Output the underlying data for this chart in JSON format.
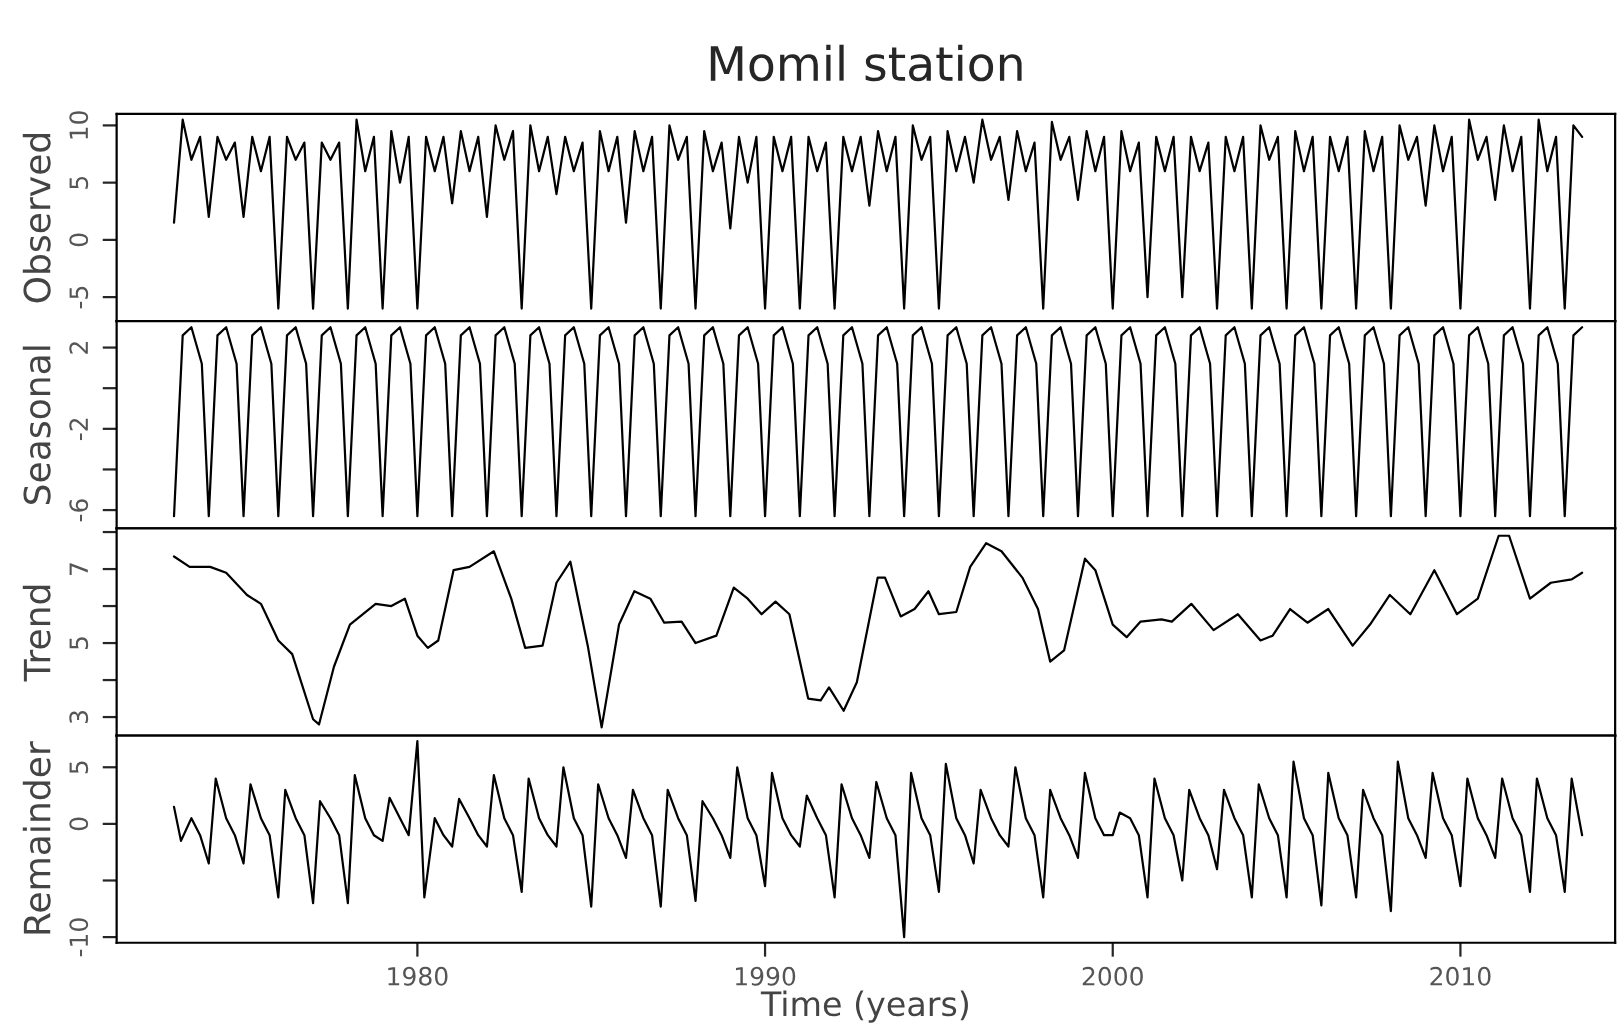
{
  "chart_data": [
    {
      "type": "line",
      "title": "Momil station",
      "ylabel": "Observed",
      "xlim": [
        1971.35,
        2014.45
      ],
      "ylim": [
        -7.1,
        11
      ],
      "yticks": [
        -5,
        0,
        5,
        10
      ],
      "tick_labels": "y",
      "series": [
        {
          "color": "#000000",
          "x": [
            1973,
            1973.25,
            1973.5,
            1973.75,
            1974,
            1974.25,
            1974.5,
            1974.75,
            1975,
            1975.25,
            1975.5,
            1975.75,
            1976,
            1976.25,
            1976.5,
            1976.75,
            1977,
            1977.25,
            1977.5,
            1977.75,
            1978,
            1978.25,
            1978.5,
            1978.75,
            1979,
            1979.25,
            1979.5,
            1979.75,
            1980,
            1980.25,
            1980.5,
            1980.75,
            1981,
            1981.25,
            1981.5,
            1981.75,
            1982,
            1982.25,
            1982.5,
            1982.75,
            1983,
            1983.25,
            1983.5,
            1983.75,
            1984,
            1984.25,
            1984.5,
            1984.75,
            1985,
            1985.25,
            1985.5,
            1985.75,
            1986,
            1986.25,
            1986.5,
            1986.75,
            1987,
            1987.25,
            1987.5,
            1987.75,
            1988,
            1988.25,
            1988.5,
            1988.75,
            1989,
            1989.25,
            1989.5,
            1989.75,
            1990,
            1990.25,
            1990.5,
            1990.75,
            1991,
            1991.25,
            1991.5,
            1991.75,
            1992,
            1992.25,
            1992.5,
            1992.75,
            1993,
            1993.25,
            1993.5,
            1993.75,
            1994,
            1994.25,
            1994.5,
            1994.75,
            1995,
            1995.25,
            1995.5,
            1995.75,
            1996,
            1996.25,
            1996.5,
            1996.75,
            1997,
            1997.25,
            1997.5,
            1997.75,
            1998,
            1998.25,
            1998.5,
            1998.75,
            1999,
            1999.25,
            1999.5,
            1999.75,
            2000,
            2000.25,
            2000.5,
            2000.75,
            2001,
            2001.25,
            2001.5,
            2001.75,
            2002,
            2002.25,
            2002.5,
            2002.75,
            2003,
            2003.25,
            2003.5,
            2003.75,
            2004,
            2004.25,
            2004.5,
            2004.75,
            2005,
            2005.25,
            2005.5,
            2005.75,
            2006,
            2006.25,
            2006.5,
            2006.75,
            2007,
            2007.25,
            2007.5,
            2007.75,
            2008,
            2008.25,
            2008.5,
            2008.75,
            2009,
            2009.25,
            2009.5,
            2009.75,
            2010,
            2010.25,
            2010.5,
            2010.75,
            2011,
            2011.25,
            2011.5,
            2011.75,
            2012,
            2012.25,
            2012.5,
            2012.75,
            2013,
            2013.25,
            2013.5
          ],
          "values": [
            1.5,
            10.5,
            7,
            9,
            2,
            9,
            7,
            8.5,
            2,
            9,
            6,
            9,
            -6,
            9,
            7,
            8.5,
            -6,
            8.5,
            7,
            8.5,
            -6,
            10.5,
            6,
            9,
            -6,
            9.5,
            5,
            9,
            -6,
            9,
            6,
            9,
            3.2,
            9.5,
            6,
            9,
            2,
            10,
            7,
            9.5,
            -6,
            10,
            6,
            9,
            4,
            9,
            6,
            8.5,
            -6,
            9.5,
            6,
            9,
            1.5,
            9.5,
            6,
            9,
            -6,
            10,
            7,
            9,
            -6,
            9.5,
            6,
            8.5,
            1,
            9,
            5,
            9,
            -6,
            9,
            6,
            9,
            -6,
            9,
            6,
            8.5,
            -6,
            9,
            6,
            9,
            3,
            9.5,
            6,
            9,
            -6,
            10,
            7,
            9,
            -6,
            9.5,
            6,
            9,
            5,
            10.5,
            7,
            9,
            3.5,
            9.5,
            6,
            8.5,
            -6,
            10.3,
            7,
            9,
            3.5,
            9.5,
            6,
            9,
            -6,
            9.5,
            6,
            8.5,
            -5,
            9,
            6,
            9,
            -5,
            9,
            6,
            8.5,
            -6,
            9,
            6,
            9,
            -6,
            10,
            7,
            9,
            -6,
            9.5,
            6,
            9,
            -6,
            9,
            6,
            9,
            -6,
            9.5,
            6,
            9,
            -6,
            10,
            7,
            9,
            3,
            10,
            6,
            9,
            -6,
            10.5,
            7,
            9,
            3.5,
            10,
            6,
            9,
            -6,
            10.5,
            6,
            9,
            -6,
            10,
            9
          ]
        }
      ]
    },
    {
      "type": "line",
      "ylabel": "Seasonal",
      "xlim": [
        1971.35,
        2014.45
      ],
      "ylim": [
        -6.9,
        3.3
      ],
      "yticks": [
        -6,
        {
          "value": -4,
          "label": null
        },
        -2,
        {
          "value": 0,
          "label": null
        },
        2
      ],
      "tick_labels": "y",
      "series": [
        {
          "color": "#000000",
          "x": [
            1973,
            1973.25,
            1973.5,
            1973.8,
            1974,
            1974.25,
            1974.5,
            1974.8,
            1975,
            1975.25,
            1975.5,
            1975.8,
            1976,
            1976.25,
            1976.5,
            1976.8,
            1977,
            1977.25,
            1977.5,
            1977.8,
            1978,
            1978.25,
            1978.5,
            1978.8,
            1979,
            1979.25,
            1979.5,
            1979.8,
            1980,
            1980.25,
            1980.5,
            1980.8,
            1981,
            1981.25,
            1981.5,
            1981.8,
            1982,
            1982.25,
            1982.5,
            1982.8,
            1983,
            1983.25,
            1983.5,
            1983.8,
            1984,
            1984.25,
            1984.5,
            1984.8,
            1985,
            1985.25,
            1985.5,
            1985.8,
            1986,
            1986.25,
            1986.5,
            1986.8,
            1987,
            1987.25,
            1987.5,
            1987.8,
            1988,
            1988.25,
            1988.5,
            1988.8,
            1989,
            1989.25,
            1989.5,
            1989.8,
            1990,
            1990.25,
            1990.5,
            1990.8,
            1991,
            1991.25,
            1991.5,
            1991.8,
            1992,
            1992.25,
            1992.5,
            1992.8,
            1993,
            1993.25,
            1993.5,
            1993.8,
            1994,
            1994.25,
            1994.5,
            1994.8,
            1995,
            1995.25,
            1995.5,
            1995.8,
            1996,
            1996.25,
            1996.5,
            1996.8,
            1997,
            1997.25,
            1997.5,
            1997.8,
            1998,
            1998.25,
            1998.5,
            1998.8,
            1999,
            1999.25,
            1999.5,
            1999.8,
            2000,
            2000.25,
            2000.5,
            2000.8,
            2001,
            2001.25,
            2001.5,
            2001.8,
            2002,
            2002.25,
            2002.5,
            2002.8,
            2003,
            2003.25,
            2003.5,
            2003.8,
            2004,
            2004.25,
            2004.5,
            2004.8,
            2005,
            2005.25,
            2005.5,
            2005.8,
            2006,
            2006.25,
            2006.5,
            2006.8,
            2007,
            2007.25,
            2007.5,
            2007.8,
            2008,
            2008.25,
            2008.5,
            2008.8,
            2009,
            2009.25,
            2009.5,
            2009.8,
            2010,
            2010.25,
            2010.5,
            2010.8,
            2011,
            2011.25,
            2011.5,
            2011.8,
            2012,
            2012.25,
            2012.5,
            2012.8,
            2013,
            2013.25,
            2013.5
          ],
          "values": [
            -6.3,
            2.6,
            3,
            1.2,
            -6.3,
            2.6,
            3,
            1.2,
            -6.3,
            2.6,
            3,
            1.2,
            -6.3,
            2.6,
            3,
            1.2,
            -6.3,
            2.6,
            3,
            1.2,
            -6.3,
            2.6,
            3,
            1.2,
            -6.3,
            2.6,
            3,
            1.2,
            -6.3,
            2.6,
            3,
            1.2,
            -6.3,
            2.6,
            3,
            1.2,
            -6.3,
            2.6,
            3,
            1.2,
            -6.3,
            2.6,
            3,
            1.2,
            -6.3,
            2.6,
            3,
            1.2,
            -6.3,
            2.6,
            3,
            1.2,
            -6.3,
            2.6,
            3,
            1.2,
            -6.3,
            2.6,
            3,
            1.2,
            -6.3,
            2.6,
            3,
            1.2,
            -6.3,
            2.6,
            3,
            1.2,
            -6.3,
            2.6,
            3,
            1.2,
            -6.3,
            2.6,
            3,
            1.2,
            -6.3,
            2.6,
            3,
            1.2,
            -6.3,
            2.6,
            3,
            1.2,
            -6.3,
            2.6,
            3,
            1.2,
            -6.3,
            2.6,
            3,
            1.2,
            -6.3,
            2.6,
            3,
            1.2,
            -6.3,
            2.6,
            3,
            1.2,
            -6.3,
            2.6,
            3,
            1.2,
            -6.3,
            2.6,
            3,
            1.2,
            -6.3,
            2.6,
            3,
            1.2,
            -6.3,
            2.6,
            3,
            1.2,
            -6.3,
            2.6,
            3,
            1.2,
            -6.3,
            2.6,
            3,
            1.2,
            -6.3,
            2.6,
            3,
            1.2,
            -6.3,
            2.6,
            3,
            1.2,
            -6.3,
            2.6,
            3,
            1.2,
            -6.3,
            2.6,
            3,
            1.2,
            -6.3,
            2.6,
            3,
            1.2,
            -6.3,
            2.6,
            3,
            1.2,
            -6.3,
            2.6,
            3,
            1.2,
            -6.3,
            2.6,
            3,
            1.2,
            -6.3,
            2.6,
            3,
            1.2,
            -6.3,
            2.6,
            3
          ]
        }
      ]
    },
    {
      "type": "line",
      "ylabel": "Trend",
      "xlim": [
        1971.35,
        2014.45
      ],
      "ylim": [
        2.5,
        8.1
      ],
      "yticks": [
        3,
        {
          "value": 4,
          "label": null
        },
        5,
        {
          "value": 6,
          "label": null
        },
        7,
        {
          "value": 8,
          "label": null
        }
      ],
      "tick_labels": "y",
      "series": [
        {
          "color": "#000000",
          "x": [
            1973,
            1973.45,
            1974.04,
            1974.5,
            1975.1,
            1975.5,
            1976,
            1976.4,
            1977,
            1977.17,
            1977.6,
            1978.06,
            1978.8,
            1979.25,
            1979.64,
            1980,
            1980.3,
            1980.6,
            1981.04,
            1981.5,
            1982.2,
            1982.7,
            1983.1,
            1983.6,
            1984,
            1984.4,
            1984.9,
            1985.3,
            1985.8,
            1986.24,
            1986.7,
            1987.1,
            1987.6,
            1988,
            1988.6,
            1989.1,
            1989.5,
            1989.9,
            1990.3,
            1990.7,
            1991.24,
            1991.6,
            1991.84,
            1992.26,
            1992.64,
            1993.24,
            1993.45,
            1993.9,
            1994.3,
            1994.7,
            1995,
            1995.5,
            1995.9,
            1996.36,
            1996.8,
            1997.4,
            1997.85,
            1998.2,
            1998.6,
            1999.2,
            1999.5,
            2000,
            2000.4,
            2000.8,
            2001.4,
            2001.7,
            2002.26,
            2002.9,
            2003.6,
            2004.25,
            2004.6,
            2005.1,
            2005.6,
            2006.2,
            2006.9,
            2007.4,
            2007.97,
            2008.56,
            2009.25,
            2009.9,
            2010.5,
            2011.1,
            2011.4,
            2012,
            2012.6,
            2013.2,
            2013.5
          ],
          "values": [
            7.34,
            7.06,
            7.06,
            6.9,
            6.3,
            6.06,
            5.07,
            4.7,
            2.94,
            2.8,
            4.36,
            5.5,
            6.06,
            6,
            6.2,
            5.2,
            4.87,
            5.07,
            6.97,
            7.06,
            7.48,
            6.2,
            4.87,
            4.93,
            6.63,
            7.2,
            4.93,
            2.72,
            5.5,
            6.4,
            6.2,
            5.55,
            5.58,
            5,
            5.2,
            6.5,
            6.2,
            5.78,
            6.12,
            5.78,
            3.5,
            3.45,
            3.8,
            3.17,
            3.94,
            6.77,
            6.77,
            5.72,
            5.92,
            6.4,
            5.78,
            5.84,
            7.06,
            7.7,
            7.48,
            6.77,
            5.92,
            4.5,
            4.8,
            7.28,
            6.97,
            5.5,
            5.16,
            5.58,
            5.64,
            5.58,
            6.06,
            5.35,
            5.78,
            5.07,
            5.2,
            5.92,
            5.55,
            5.92,
            4.93,
            5.5,
            6.3,
            5.78,
            6.97,
            5.78,
            6.2,
            7.9,
            7.9,
            6.2,
            6.63,
            6.72,
            6.9
          ]
        }
      ]
    },
    {
      "type": "line",
      "ylabel": "Remainder",
      "xlabel": "Time (years)",
      "xlim": [
        1971.35,
        2014.45
      ],
      "xticks": [
        1980,
        1990,
        2000,
        2010
      ],
      "ylim": [
        -10.5,
        7.8
      ],
      "yticks": [
        -10,
        {
          "value": -5,
          "label": null
        },
        0,
        5
      ],
      "series": [
        {
          "color": "#000000",
          "x": [
            1973,
            1973.2,
            1973.5,
            1973.75,
            1974,
            1974.2,
            1974.5,
            1974.75,
            1975,
            1975.2,
            1975.5,
            1975.75,
            1976,
            1976.2,
            1976.5,
            1976.75,
            1977,
            1977.2,
            1977.5,
            1977.75,
            1978,
            1978.2,
            1978.5,
            1978.75,
            1979,
            1979.2,
            1979.5,
            1979.75,
            1980,
            1980.2,
            1980.5,
            1980.75,
            1981,
            1981.2,
            1981.5,
            1981.75,
            1982,
            1982.2,
            1982.5,
            1982.75,
            1983,
            1983.2,
            1983.5,
            1983.75,
            1984,
            1984.2,
            1984.5,
            1984.75,
            1985,
            1985.2,
            1985.5,
            1985.75,
            1986,
            1986.2,
            1986.5,
            1986.75,
            1987,
            1987.2,
            1987.5,
            1987.75,
            1988,
            1988.2,
            1988.5,
            1988.75,
            1989,
            1989.2,
            1989.5,
            1989.75,
            1990,
            1990.2,
            1990.5,
            1990.75,
            1991,
            1991.2,
            1991.5,
            1991.75,
            1992,
            1992.2,
            1992.5,
            1992.75,
            1993,
            1993.2,
            1993.5,
            1993.75,
            1994,
            1994.2,
            1994.5,
            1994.75,
            1995,
            1995.2,
            1995.5,
            1995.75,
            1996,
            1996.2,
            1996.5,
            1996.75,
            1997,
            1997.2,
            1997.5,
            1997.75,
            1998,
            1998.2,
            1998.5,
            1998.75,
            1999,
            1999.2,
            1999.5,
            1999.75,
            2000,
            2000.2,
            2000.5,
            2000.75,
            2001,
            2001.2,
            2001.5,
            2001.75,
            2002,
            2002.2,
            2002.5,
            2002.75,
            2003,
            2003.2,
            2003.5,
            2003.75,
            2004,
            2004.2,
            2004.5,
            2004.75,
            2005,
            2005.2,
            2005.5,
            2005.75,
            2006,
            2006.2,
            2006.5,
            2006.75,
            2007,
            2007.2,
            2007.5,
            2007.75,
            2008,
            2008.2,
            2008.5,
            2008.75,
            2009,
            2009.2,
            2009.5,
            2009.75,
            2010,
            2010.2,
            2010.5,
            2010.75,
            2011,
            2011.2,
            2011.5,
            2011.75,
            2012,
            2012.2,
            2012.5,
            2012.75,
            2013,
            2013.2,
            2013.5
          ],
          "values": [
            1.5,
            -1.5,
            0.5,
            -1,
            -3.5,
            4,
            0.5,
            -1,
            -3.5,
            3.5,
            0.5,
            -1,
            -6.5,
            3,
            0.5,
            -1,
            -7,
            2,
            0.5,
            -1,
            -7,
            4.3,
            0.5,
            -1,
            -1.5,
            2.3,
            0.5,
            -1,
            7.3,
            -6.5,
            0.5,
            -1,
            -2,
            2.2,
            0.5,
            -1,
            -2,
            4.3,
            0.5,
            -1,
            -6,
            4,
            0.5,
            -1,
            -2,
            5,
            0.5,
            -1,
            -7.3,
            3.5,
            0.5,
            -1,
            -3,
            3,
            0.5,
            -1,
            -7.3,
            3,
            0.5,
            -1,
            -6.8,
            2,
            0.5,
            -1,
            -3,
            5,
            0.5,
            -1,
            -5.5,
            4.5,
            0.5,
            -1,
            -2,
            2.5,
            0.5,
            -1,
            -6.5,
            3.5,
            0.5,
            -1,
            -3,
            3.7,
            0.5,
            -1,
            -10,
            4.5,
            0.5,
            -1,
            -6,
            5.3,
            0.5,
            -1,
            -3.5,
            3,
            0.5,
            -1,
            -2,
            5,
            0.5,
            -1,
            -6.5,
            3,
            0.5,
            -1,
            -3,
            4.5,
            0.5,
            -1,
            -1,
            1,
            0.5,
            -1,
            -6.5,
            4,
            0.5,
            -1,
            -5,
            3,
            0.5,
            -1,
            -4,
            3,
            0.5,
            -1,
            -6.5,
            3.5,
            0.5,
            -1,
            -6.5,
            5.5,
            0.5,
            -1,
            -7.2,
            4.5,
            0.5,
            -1,
            -6.5,
            3,
            0.5,
            -1,
            -7.7,
            5.5,
            0.5,
            -1,
            -3,
            4.5,
            0.5,
            -1,
            -5.5,
            4,
            0.5,
            -1,
            -3,
            4,
            0.5,
            -1,
            -6,
            4,
            0.5,
            -1,
            -6,
            4,
            -1
          ]
        }
      ]
    }
  ]
}
